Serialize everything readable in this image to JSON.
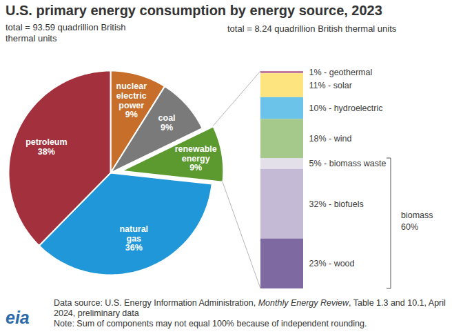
{
  "chart_data": [
    {
      "type": "pie",
      "title": "U.S. primary energy consumption by energy source, 2023",
      "subtitle": "total = 93.59 quadrillion British thermal units",
      "categories": [
        "nuclear electric power",
        "coal",
        "renewable energy",
        "natural gas",
        "petroleum"
      ],
      "values": [
        9,
        9,
        9,
        36,
        38
      ],
      "value_labels": [
        "9%",
        "9%",
        "9%",
        "36%",
        "38%"
      ],
      "colors": [
        "#c76f2a",
        "#7a7a7a",
        "#5c9a2f",
        "#1f97d9",
        "#a3313d"
      ],
      "data_labels": true
    },
    {
      "type": "bar",
      "stacked": true,
      "subtitle": "total = 8.24 quadrillion British thermal units",
      "categories": [
        "geothermal",
        "solar",
        "hydroelectric",
        "wind",
        "biomass waste",
        "biofuels",
        "wood"
      ],
      "values": [
        1,
        11,
        10,
        18,
        5,
        32,
        23
      ],
      "value_labels": [
        "1% - geothermal",
        "11% - solar",
        "10% - hydroelectric",
        "18% - wind",
        "5% - biomass waste",
        "32% - biofuels",
        "23% - wood"
      ],
      "colors": [
        "#c27ba0",
        "#fde47f",
        "#6cc3ea",
        "#a5c98a",
        "#e4e0ea",
        "#c4bad6",
        "#7e6aa0"
      ],
      "data_labels": true,
      "tick_labels": false,
      "groups": [
        {
          "name": "biomass",
          "value": 60,
          "value_label": "60%",
          "members": [
            "biomass waste",
            "biofuels",
            "wood"
          ]
        }
      ]
    }
  ],
  "source": [
    "Data source: U.S. Energy Information Administration, ",
    "Monthly Energy Review",
    ", Table 1.3 and 10.1, April 2024, preliminary data"
  ],
  "note": "Note: Sum of components may not equal 100% because of independent rounding.",
  "logo": "eia"
}
